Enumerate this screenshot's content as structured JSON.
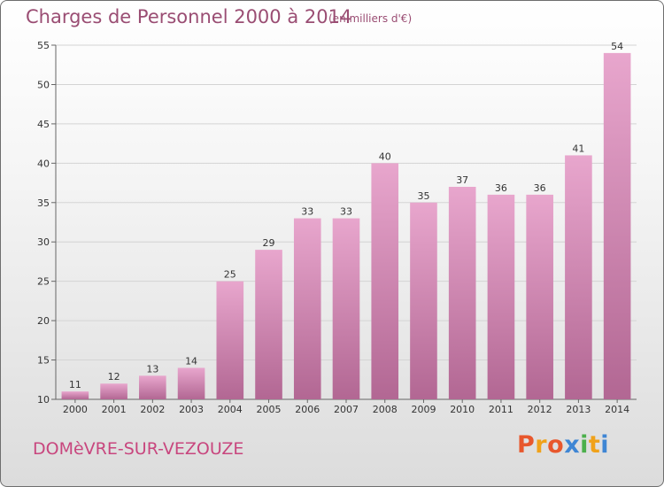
{
  "header": {
    "title": "Charges de Personnel 2000 à 2014",
    "subtitle": "(en milliers d'€)"
  },
  "footer": {
    "commune": "DOMèVRE-SUR-VEZOUZE",
    "logo_text": "Proxiti"
  },
  "colors": {
    "bar_light": "#e8a6cd",
    "bar_dark": "#b26793",
    "title": "#9a4d73",
    "commune": "#c8467e",
    "logo": [
      "#e8572c",
      "#f0a21a",
      "#e8572c",
      "#3f86d4",
      "#4cb04c",
      "#f0a21a",
      "#3f86d4"
    ]
  },
  "chart_data": {
    "type": "bar",
    "title": "Charges de Personnel 2000 à 2014",
    "subtitle": "(en milliers d'€)",
    "categories": [
      "2000",
      "2001",
      "2002",
      "2003",
      "2004",
      "2005",
      "2006",
      "2007",
      "2008",
      "2009",
      "2010",
      "2011",
      "2012",
      "2013",
      "2014"
    ],
    "values": [
      11,
      12,
      13,
      14,
      25,
      29,
      33,
      33,
      40,
      35,
      37,
      36,
      36,
      41,
      54
    ],
    "ylim": [
      10,
      55
    ],
    "yticks": [
      10,
      15,
      20,
      25,
      30,
      35,
      40,
      45,
      50,
      55
    ],
    "grid": true,
    "data_labels": true
  }
}
